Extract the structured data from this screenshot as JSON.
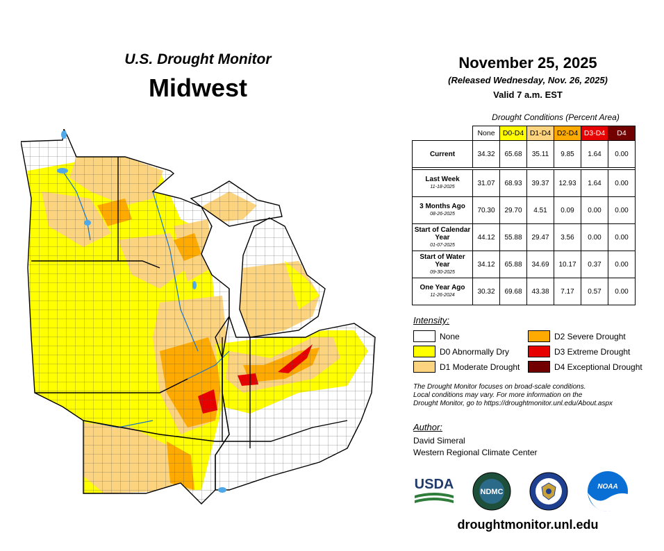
{
  "header": {
    "subtitle": "U.S. Drought Monitor",
    "region": "Midwest"
  },
  "info": {
    "date": "November 25, 2025",
    "released": "(Released Wednesday, Nov. 26, 2025)",
    "valid": "Valid 7 a.m. EST"
  },
  "table": {
    "caption": "Drought Conditions (Percent Area)",
    "columns": [
      "None",
      "D0-D4",
      "D1-D4",
      "D2-D4",
      "D3-D4",
      "D4"
    ],
    "column_colors": [
      "#ffffff",
      "#ffff00",
      "#fcd37f",
      "#ffaa00",
      "#e60000",
      "#730000"
    ],
    "rows": [
      {
        "label": "Current",
        "date": "",
        "values": [
          "34.32",
          "65.68",
          "35.11",
          "9.85",
          "1.64",
          "0.00"
        ]
      },
      {
        "label": "Last Week",
        "date": "11-18-2025",
        "values": [
          "31.07",
          "68.93",
          "39.37",
          "12.93",
          "1.64",
          "0.00"
        ]
      },
      {
        "label": "3 Months Ago",
        "date": "08-26-2025",
        "values": [
          "70.30",
          "29.70",
          "4.51",
          "0.09",
          "0.00",
          "0.00"
        ]
      },
      {
        "label": "Start of Calendar Year",
        "date": "01-07-2025",
        "values": [
          "44.12",
          "55.88",
          "29.47",
          "3.56",
          "0.00",
          "0.00"
        ]
      },
      {
        "label": "Start of Water Year",
        "date": "09-30-2025",
        "values": [
          "34.12",
          "65.88",
          "34.69",
          "10.17",
          "0.37",
          "0.00"
        ]
      },
      {
        "label": "One Year Ago",
        "date": "11-26-2024",
        "values": [
          "30.32",
          "69.68",
          "43.38",
          "7.17",
          "0.57",
          "0.00"
        ]
      }
    ]
  },
  "legend": {
    "title": "Intensity:",
    "items": [
      {
        "label": "None",
        "color": "#ffffff"
      },
      {
        "label": "D0 Abnormally Dry",
        "color": "#ffff00"
      },
      {
        "label": "D1 Moderate Drought",
        "color": "#fcd37f"
      },
      {
        "label": "D2 Severe Drought",
        "color": "#ffaa00"
      },
      {
        "label": "D3 Extreme Drought",
        "color": "#e60000"
      },
      {
        "label": "D4 Exceptional Drought",
        "color": "#730000"
      }
    ]
  },
  "note": {
    "line1": "The Drought Monitor focuses on broad-scale conditions.",
    "line2": "Local conditions may vary. For more information on the",
    "line3": "Drought Monitor, go to https://droughtmonitor.unl.edu/About.aspx"
  },
  "author": {
    "title": "Author:",
    "name": "David Simeral",
    "org": "Western Regional Climate Center"
  },
  "logos": {
    "usda": "USDA",
    "ndmc": "NDMC",
    "noaa": "NOAA"
  },
  "footer": {
    "url": "droughtmonitor.unl.edu"
  },
  "map_colors": {
    "water": "#4fa8e8",
    "none": "#ffffff",
    "d0": "#ffff00",
    "d1": "#fcd37f",
    "d2": "#ffaa00",
    "d3": "#e60000"
  }
}
